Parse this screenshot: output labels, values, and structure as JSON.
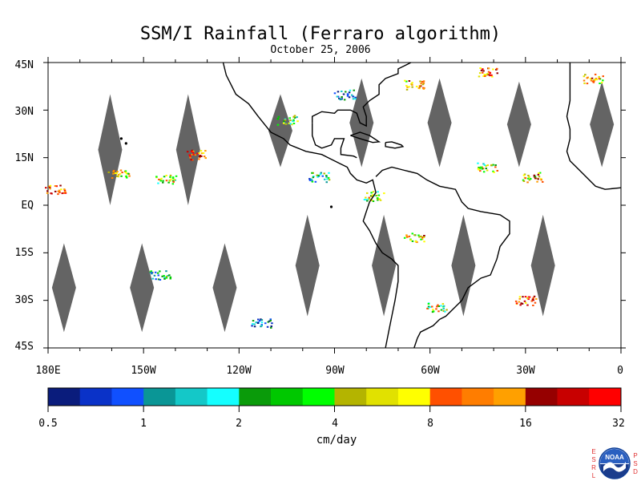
{
  "title": "SSM/I Rainfall (Ferraro algorithm)",
  "date": "October 25, 2006",
  "lat_labels": [
    "45N",
    "30N",
    "15N",
    "EQ",
    "15S",
    "30S",
    "45S"
  ],
  "lon_labels": [
    "180E",
    "150W",
    "120W",
    "90W",
    "60W",
    "30W",
    "0"
  ],
  "colorbar": {
    "tick_labels": [
      "0.5",
      "1",
      "2",
      "4",
      "8",
      "16",
      "32"
    ],
    "units": "cm/day",
    "colors": [
      "#0a1c7c",
      "#0a32c8",
      "#1050ff",
      "#0a9696",
      "#14c8c8",
      "#14ffff",
      "#0a9b0a",
      "#00c800",
      "#00ff00",
      "#b4b400",
      "#e1e100",
      "#ffff00",
      "#ff5000",
      "#ff7d00",
      "#ffa000",
      "#960000",
      "#c80000",
      "#ff0000"
    ]
  },
  "logo": {
    "left_letters": [
      "E",
      "S",
      "R",
      "L"
    ],
    "right_letters": [
      "P",
      "S",
      "D"
    ],
    "text": "NOAA"
  },
  "map_colors": {
    "coast": "#000000",
    "gap": "#646464",
    "background": "#ffffff"
  },
  "chart_data": {
    "type": "heatmap",
    "title": "SSM/I Rainfall (Ferraro algorithm)",
    "subtitle": "October 25, 2006",
    "xlabel": "",
    "ylabel": "",
    "xlim": [
      -180,
      0
    ],
    "ylim": [
      -45,
      45
    ],
    "units": "cm/day",
    "scale": "log2",
    "color_levels": [
      0.5,
      1,
      2,
      4,
      8,
      16,
      32
    ],
    "swath_gaps": [
      {
        "lon": -160.5,
        "lat_min": 0,
        "lat_max": 35
      },
      {
        "lon": -136,
        "lat_min": 0,
        "lat_max": 35
      },
      {
        "lon": -107,
        "lat_min": 12,
        "lat_max": 35
      },
      {
        "lon": -81.5,
        "lat_min": 12,
        "lat_max": 40
      },
      {
        "lon": -57,
        "lat_min": 12,
        "lat_max": 40
      },
      {
        "lon": -32,
        "lat_min": 12,
        "lat_max": 39
      },
      {
        "lon": -6,
        "lat_min": 12,
        "lat_max": 39
      },
      {
        "lon": -175,
        "lat_min": -40,
        "lat_max": -12
      },
      {
        "lon": -150.5,
        "lat_min": -40,
        "lat_max": -12
      },
      {
        "lon": -124.5,
        "lat_min": -40,
        "lat_max": -12
      },
      {
        "lon": -98.5,
        "lat_min": -35,
        "lat_max": -3
      },
      {
        "lon": -74.5,
        "lat_min": -35,
        "lat_max": -3
      },
      {
        "lon": -49.5,
        "lat_min": -35,
        "lat_max": -3
      },
      {
        "lon": -24.5,
        "lat_min": -35,
        "lat_max": -3
      }
    ],
    "rain_clusters": [
      {
        "lon": -158,
        "lat": 10,
        "rate": 8
      },
      {
        "lon": -143,
        "lat": 8.5,
        "rate": 4
      },
      {
        "lon": -134,
        "lat": 16,
        "rate": 16
      },
      {
        "lon": -178,
        "lat": 5,
        "rate": 16
      },
      {
        "lon": -145,
        "lat": -22,
        "rate": 2
      },
      {
        "lon": -113,
        "lat": -37,
        "rate": 1
      },
      {
        "lon": -105,
        "lat": 27,
        "rate": 4
      },
      {
        "lon": -87,
        "lat": 35,
        "rate": 1
      },
      {
        "lon": -65,
        "lat": 38,
        "rate": 8
      },
      {
        "lon": -42,
        "lat": 42,
        "rate": 16
      },
      {
        "lon": -42,
        "lat": 12,
        "rate": 4
      },
      {
        "lon": -28,
        "lat": 9,
        "rate": 8
      },
      {
        "lon": -9,
        "lat": 40,
        "rate": 8
      },
      {
        "lon": -65,
        "lat": -10,
        "rate": 8
      },
      {
        "lon": -58,
        "lat": -32,
        "rate": 4
      },
      {
        "lon": -30,
        "lat": -30,
        "rate": 16
      },
      {
        "lon": -95,
        "lat": 9,
        "rate": 2
      },
      {
        "lon": -78,
        "lat": 3,
        "rate": 4
      }
    ]
  }
}
